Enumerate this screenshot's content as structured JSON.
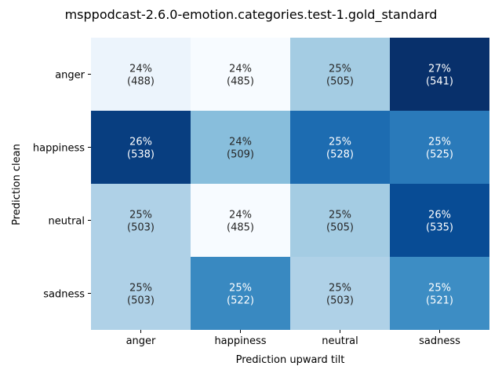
{
  "chart_data": {
    "type": "heatmap",
    "title": "msppodcast-2.6.0-emotion.categories.test-1.gold_standard",
    "xlabel": "Prediction upward tilt",
    "ylabel": "Prediction clean",
    "x_categories": [
      "anger",
      "happiness",
      "neutral",
      "sadness"
    ],
    "y_categories": [
      "anger",
      "happiness",
      "neutral",
      "sadness"
    ],
    "colormap": "Blues",
    "counts": [
      [
        488,
        485,
        505,
        541
      ],
      [
        538,
        509,
        528,
        525
      ],
      [
        503,
        485,
        505,
        535
      ],
      [
        503,
        522,
        503,
        521
      ]
    ],
    "percent_labels": [
      [
        "24%",
        "24%",
        "25%",
        "27%"
      ],
      [
        "26%",
        "24%",
        "25%",
        "25%"
      ],
      [
        "25%",
        "24%",
        "25%",
        "26%"
      ],
      [
        "25%",
        "25%",
        "25%",
        "25%"
      ]
    ],
    "count_labels": [
      [
        "(488)",
        "(485)",
        "(505)",
        "(541)"
      ],
      [
        "(538)",
        "(509)",
        "(528)",
        "(525)"
      ],
      [
        "(503)",
        "(485)",
        "(505)",
        "(535)"
      ],
      [
        "(503)",
        "(522)",
        "(503)",
        "(521)"
      ]
    ],
    "color_scale": [
      0.2,
      0.275
    ],
    "colorbar": false,
    "grid": false
  }
}
